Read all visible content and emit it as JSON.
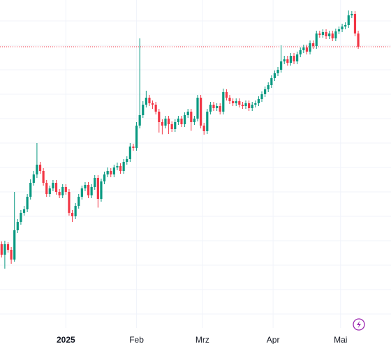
{
  "chart_data": {
    "type": "candlestick",
    "up_color": "#089981",
    "down_color": "#f23645",
    "grid": true,
    "xlim": [
      -0.5,
      121.2
    ],
    "ylim": [
      0,
      94
    ],
    "xticks": [
      {
        "value": 20,
        "label": "2025"
      },
      {
        "value": 42,
        "label": "Feb"
      },
      {
        "value": 62.5,
        "label": "Mrz"
      },
      {
        "value": 84.5,
        "label": "Apr"
      },
      {
        "value": 105.5,
        "label": "Mai"
      }
    ],
    "ygrid": [
      4,
      11,
      18,
      25,
      32,
      39,
      46,
      53,
      60,
      67,
      74,
      81,
      88
    ],
    "last_price": 80.6,
    "last_price_color": "#f23645",
    "open": [
      24,
      21,
      24,
      22.4,
      19.6,
      28,
      30.4,
      33,
      34,
      37.6,
      41.6,
      44,
      46.8,
      45,
      41.6,
      38.4,
      40,
      41.6,
      39,
      38,
      40.4,
      39,
      33,
      32,
      35,
      37.6,
      40,
      41,
      38,
      40.4,
      43,
      37,
      42,
      44,
      45,
      44,
      46,
      46.4,
      45,
      47.6,
      48.4,
      52,
      51.6,
      58,
      61,
      64,
      66,
      64.4,
      64,
      62,
      59,
      58,
      60,
      58.4,
      57,
      59,
      60,
      58.4,
      61,
      62,
      59,
      60,
      66,
      58,
      56.4,
      62,
      64,
      63,
      63.6,
      62,
      67.6,
      66,
      65,
      64.4,
      65,
      64,
      63.6,
      64.4,
      63,
      64,
      64.4,
      65.6,
      67,
      68.4,
      69.6,
      71.6,
      73,
      74,
      76.4,
      77,
      76,
      78,
      76.4,
      78.4,
      79.6,
      80.4,
      79.2,
      81.6,
      80.8,
      84.4,
      84,
      84.8,
      83.6,
      84.4,
      83,
      85,
      85.6,
      86.4,
      86.8,
      89.6,
      90,
      84.4
    ],
    "high": [
      24.8,
      25,
      24.6,
      23.2,
      39,
      31.2,
      33.8,
      35,
      38.4,
      42.6,
      45,
      53,
      47.6,
      45.8,
      42.4,
      40.8,
      42.4,
      42.4,
      39.8,
      41.2,
      41.2,
      39.8,
      33.8,
      35.8,
      38.4,
      40.8,
      41.8,
      41.8,
      41.2,
      43.8,
      43.8,
      42.8,
      44.8,
      46,
      45.8,
      46.8,
      47.4,
      47.2,
      48.4,
      49.2,
      53,
      52.8,
      59,
      83,
      65,
      68,
      66.8,
      65.2,
      64.8,
      62.8,
      59.8,
      60.8,
      60.8,
      59.2,
      59.8,
      60.8,
      60.8,
      61.8,
      62.8,
      62.8,
      60.8,
      66.8,
      66.8,
      58.8,
      62.8,
      64.8,
      64.8,
      64.4,
      64.4,
      68.6,
      68.4,
      66.8,
      65.8,
      65.8,
      65.8,
      64.8,
      65.2,
      65.2,
      64.8,
      65.2,
      66.4,
      67.8,
      69.2,
      70.4,
      72.4,
      73.8,
      74.8,
      81,
      78,
      78,
      78.8,
      78.8,
      79.2,
      80.4,
      81.2,
      81.2,
      82.4,
      82.4,
      85.2,
      85.2,
      85.6,
      85.6,
      85.2,
      85.2,
      85.8,
      86.4,
      87.2,
      87.6,
      91,
      90.8,
      90.8,
      85.2
    ],
    "low": [
      20.2,
      17,
      21.6,
      18.4,
      19,
      27.2,
      29.6,
      32.2,
      33.2,
      36.8,
      40.8,
      43,
      44.2,
      40.8,
      37.6,
      37.6,
      39.2,
      38.2,
      37.2,
      37.2,
      38.2,
      32.2,
      30.4,
      31.2,
      34.2,
      36.8,
      39.2,
      37.2,
      37.2,
      39.6,
      34.5,
      36.2,
      41.2,
      43.2,
      43.2,
      43.2,
      45.2,
      44.2,
      44.2,
      46.8,
      47.6,
      50.8,
      50.8,
      57.2,
      60.2,
      63.2,
      63.6,
      62.8,
      61.2,
      56,
      55.5,
      57.2,
      55.6,
      56.2,
      56.2,
      58.2,
      57.6,
      57.6,
      60.2,
      56.5,
      58.2,
      59.2,
      57.2,
      55.4,
      55.6,
      61.2,
      62.2,
      62.2,
      61.2,
      61.2,
      65.2,
      64.2,
      63.6,
      63.6,
      63.2,
      62.8,
      62.8,
      62.2,
      62.2,
      63.2,
      63.6,
      64.8,
      66.2,
      67.6,
      68.8,
      70.8,
      72.2,
      73.2,
      75.6,
      75.2,
      75.2,
      75.6,
      75.6,
      77.6,
      78.8,
      78.4,
      78.4,
      80,
      80,
      83.2,
      83.2,
      82.8,
      82.8,
      82.2,
      82.2,
      84.2,
      84.8,
      85.6,
      86,
      88.8,
      83.6,
      80
    ],
    "close": [
      21,
      24,
      22.4,
      19.6,
      28,
      30.4,
      33,
      34,
      37.6,
      41.6,
      44,
      46.8,
      45,
      41.6,
      38.4,
      40,
      41.6,
      39,
      38,
      40.4,
      39,
      33,
      32,
      35,
      37.6,
      40,
      41,
      38,
      40.4,
      43,
      37,
      42,
      44,
      45,
      44,
      46,
      46.4,
      45,
      47.6,
      48.4,
      52,
      51.6,
      58,
      61,
      64,
      66,
      64.4,
      64,
      62,
      59,
      58,
      60,
      58.4,
      57,
      59,
      60,
      58.4,
      61,
      62,
      59,
      60,
      66,
      58,
      56.4,
      62,
      64,
      63,
      63.6,
      62,
      67.6,
      66,
      65,
      64.4,
      65,
      64,
      63.6,
      64.4,
      63,
      64,
      64.4,
      65.6,
      67,
      68.4,
      69.6,
      71.6,
      73,
      74,
      76.4,
      77,
      76,
      78,
      76.4,
      78.4,
      79.6,
      80.4,
      79.2,
      81.6,
      80.8,
      84.4,
      84,
      84.8,
      83.6,
      84.4,
      83,
      85,
      85.6,
      86.4,
      86.8,
      89.6,
      90,
      84.4,
      80.6
    ]
  }
}
